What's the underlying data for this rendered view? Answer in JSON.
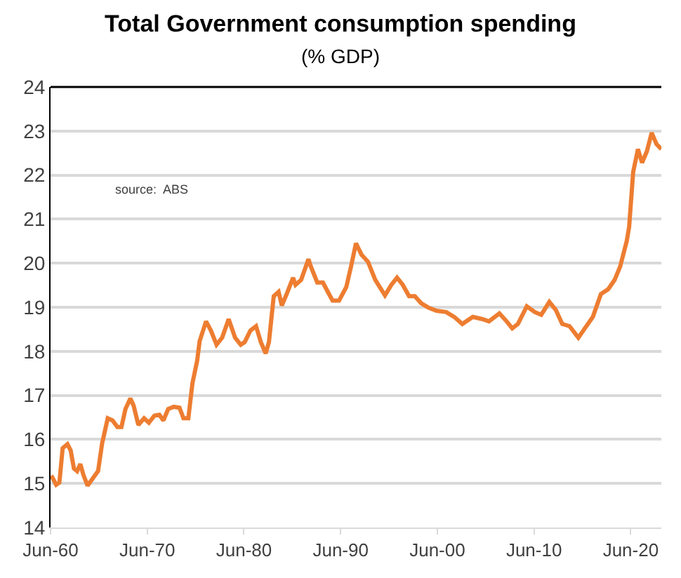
{
  "chart_data": {
    "type": "line",
    "title": "Total Government consumption spending",
    "subtitle": "(% GDP)",
    "annotations": [
      "source:  ABS"
    ],
    "x": [
      "1960-07",
      "1961-01",
      "1961-05",
      "1961-09",
      "1962-03",
      "1962-07",
      "1962-11",
      "1963-03",
      "1963-07",
      "1963-11",
      "1964-04",
      "1964-09",
      "1965-05",
      "1965-10",
      "1966-05",
      "1966-11",
      "1967-05",
      "1967-10",
      "1968-03",
      "1968-09",
      "1969-01",
      "1969-07",
      "1970-02",
      "1970-08",
      "1971-03",
      "1971-09",
      "1972-02",
      "1972-08",
      "1973-03",
      "1973-10",
      "1974-03",
      "1974-09",
      "1975-02",
      "1975-08",
      "1975-11",
      "1976-07",
      "1977-01",
      "1977-08",
      "1978-03",
      "1978-11",
      "1979-07",
      "1980-02",
      "1980-07",
      "1981-02",
      "1981-09",
      "1982-03",
      "1982-09",
      "1983-01",
      "1983-07",
      "1984-01",
      "1984-05",
      "1984-11",
      "1985-07",
      "1985-10",
      "1986-05",
      "1987-02",
      "1987-05",
      "1988-01",
      "1988-08",
      "1989-02",
      "1989-08",
      "1990-04",
      "1991-01",
      "1991-07",
      "1992-01",
      "1992-08",
      "1993-04",
      "1994-01",
      "1995-01",
      "1995-09",
      "1996-04",
      "1996-11",
      "1997-07",
      "1998-02",
      "1998-10",
      "1999-07",
      "2000-05",
      "2001-05",
      "2002-03",
      "2003-01",
      "2004-02",
      "2005-02",
      "2005-10",
      "2006-11",
      "2007-08",
      "2008-03",
      "2008-10",
      "2009-09",
      "2010-07",
      "2011-03",
      "2012-01",
      "2012-09",
      "2013-05",
      "2014-02",
      "2015-01",
      "2015-09",
      "2016-07",
      "2017-05",
      "2018-02",
      "2018-10",
      "2019-05",
      "2020-01",
      "2020-04",
      "2020-09",
      "2021-03",
      "2021-08",
      "2022-02",
      "2022-08",
      "2023-02",
      "2023-08"
    ],
    "series": [
      {
        "color": "#ed7d31",
        "values": [
          15.18,
          14.97,
          15.02,
          15.8,
          15.89,
          15.75,
          15.34,
          15.28,
          15.44,
          15.18,
          14.95,
          15.08,
          15.28,
          15.91,
          16.48,
          16.43,
          16.28,
          16.28,
          16.69,
          16.93,
          16.77,
          16.33,
          16.48,
          16.38,
          16.54,
          16.56,
          16.43,
          16.69,
          16.74,
          16.72,
          16.48,
          16.48,
          17.27,
          17.79,
          18.23,
          18.68,
          18.47,
          18.15,
          18.31,
          18.73,
          18.31,
          18.15,
          18.21,
          18.47,
          18.57,
          18.21,
          17.95,
          18.21,
          19.25,
          19.35,
          19.04,
          19.3,
          19.67,
          19.51,
          19.62,
          20.09,
          19.93,
          19.56,
          19.56,
          19.35,
          19.15,
          19.15,
          19.46,
          19.93,
          20.45,
          20.19,
          20.03,
          19.62,
          19.27,
          19.51,
          19.67,
          19.51,
          19.25,
          19.25,
          19.09,
          18.99,
          18.92,
          18.89,
          18.78,
          18.62,
          18.78,
          18.73,
          18.68,
          18.86,
          18.68,
          18.52,
          18.62,
          19.02,
          18.89,
          18.83,
          19.12,
          18.94,
          18.62,
          18.57,
          18.31,
          18.52,
          18.78,
          19.3,
          19.41,
          19.62,
          19.93,
          20.5,
          20.82,
          22.07,
          22.59,
          22.28,
          22.54,
          22.96,
          22.7,
          22.59
        ]
      }
    ],
    "xlim": [
      "1960-06",
      "2023-08"
    ],
    "xticks": [
      {
        "value": "1960-06",
        "label": "Jun-60"
      },
      {
        "value": "1970-06",
        "label": "Jun-70"
      },
      {
        "value": "1980-06",
        "label": "Jun-80"
      },
      {
        "value": "1990-06",
        "label": "Jun-90"
      },
      {
        "value": "2000-06",
        "label": "Jun-00"
      },
      {
        "value": "2010-06",
        "label": "Jun-10"
      },
      {
        "value": "2020-06",
        "label": "Jun-20"
      }
    ],
    "ylim": [
      14,
      24
    ],
    "yticks": [
      14,
      15,
      16,
      17,
      18,
      19,
      20,
      21,
      22,
      23,
      24
    ],
    "grid": "y",
    "line_style": "solid",
    "marker": "none"
  }
}
